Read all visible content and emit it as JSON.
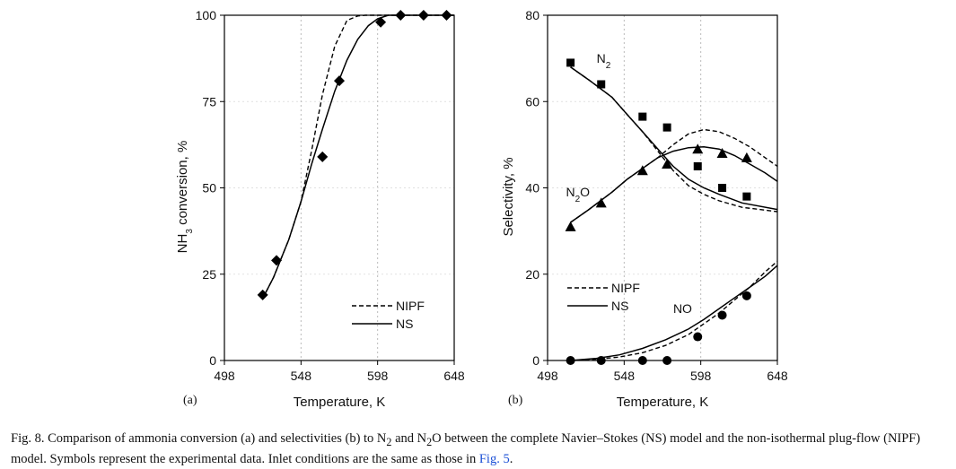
{
  "caption": {
    "part1": "Fig. 8. Comparison of ammonia conversion (a) and selectivities (b) to N",
    "sub1": "2",
    "part2": " and N",
    "sub2": "2",
    "part3": "O between the complete Navier–Stokes (NS) model and the non-isothermal plug-flow (NIPF) model. Symbols represent the experimental data. Inlet conditions are the same as those in ",
    "fig_ref": "Fig. 5",
    "part4": "."
  },
  "chart_data": [
    {
      "panel": "(a)",
      "type": "line",
      "xlabel": "Temperature, K",
      "ylabel": "NH3 conversion, %",
      "ylabel_parts": [
        "NH",
        "3",
        " conversion, %"
      ],
      "xlim": [
        498,
        648
      ],
      "ylim": [
        0,
        100
      ],
      "x_ticks": [
        498,
        548,
        598,
        648
      ],
      "y_ticks": [
        0,
        25,
        50,
        75,
        100
      ],
      "grid": "vertical dashed at x ticks",
      "legend": {
        "position": "bottom-right",
        "entries": [
          "NIPF",
          "NS"
        ]
      },
      "series": [
        {
          "name": "NIPF",
          "style": "dashed",
          "x": [
            523,
            530,
            540,
            548,
            555,
            562,
            570,
            578,
            585,
            590,
            598,
            610,
            648
          ],
          "y": [
            18,
            24,
            35,
            46,
            61,
            77,
            91,
            98.5,
            99.8,
            100,
            100,
            100,
            100
          ]
        },
        {
          "name": "NS",
          "style": "solid",
          "x": [
            523,
            530,
            540,
            548,
            555,
            562,
            570,
            578,
            585,
            592,
            598,
            605,
            615,
            648
          ],
          "y": [
            18,
            24,
            35,
            46,
            57,
            67,
            78,
            87,
            93,
            97,
            99,
            100,
            100,
            100
          ]
        },
        {
          "name": "experimental",
          "style": "diamond-markers",
          "x": [
            523,
            532,
            562,
            573,
            600,
            613,
            628,
            643
          ],
          "y": [
            19,
            29,
            59,
            81,
            98,
            100,
            100,
            100
          ]
        }
      ]
    },
    {
      "panel": "(b)",
      "type": "line",
      "xlabel": "Temperature, K",
      "ylabel": "Selectivity, %",
      "xlim": [
        498,
        648
      ],
      "ylim": [
        0,
        80
      ],
      "x_ticks": [
        498,
        548,
        598,
        648
      ],
      "y_ticks": [
        0,
        20,
        40,
        60,
        80
      ],
      "grid": "vertical dashed at x ticks",
      "legend": {
        "position": "bottom-left",
        "entries": [
          "NIPF",
          "NS"
        ]
      },
      "annotations": [
        {
          "base": "N",
          "sub": "2",
          "after": "",
          "x": 530,
          "y": 69
        },
        {
          "base": "N",
          "sub": "2",
          "after": "O",
          "x": 510,
          "y": 38
        },
        {
          "base": "NO",
          "sub": "",
          "after": "",
          "x": 580,
          "y": 11
        }
      ],
      "series": [
        {
          "name": "N2 NIPF",
          "style": "dashed",
          "x": [
            513,
            525,
            540,
            550,
            560,
            570,
            580,
            590,
            600,
            610,
            625,
            648
          ],
          "y": [
            68,
            65,
            61,
            57,
            53,
            48.5,
            44,
            40.5,
            38.5,
            37,
            35.5,
            34.5
          ]
        },
        {
          "name": "N2 NS",
          "style": "solid",
          "x": [
            513,
            525,
            540,
            550,
            560,
            570,
            580,
            590,
            600,
            610,
            625,
            648
          ],
          "y": [
            68,
            65,
            61,
            57,
            53,
            49,
            45,
            42,
            40,
            38.5,
            36.5,
            35
          ]
        },
        {
          "name": "N2O NIPF",
          "style": "dashed",
          "x": [
            513,
            525,
            540,
            550,
            560,
            570,
            580,
            590,
            600,
            610,
            620,
            630,
            640,
            648
          ],
          "y": [
            32,
            35,
            39,
            42,
            44.5,
            47,
            50,
            52.5,
            53.5,
            53,
            51.5,
            49.5,
            47,
            45
          ]
        },
        {
          "name": "N2O NS",
          "style": "solid",
          "x": [
            513,
            525,
            540,
            550,
            560,
            570,
            580,
            590,
            600,
            610,
            620,
            630,
            640,
            648
          ],
          "y": [
            32,
            35,
            39,
            42,
            44.5,
            47,
            48.5,
            49.3,
            49.5,
            49,
            47.5,
            45.5,
            43.5,
            41.5
          ]
        },
        {
          "name": "NO NIPF",
          "style": "dashed",
          "x": [
            513,
            530,
            545,
            560,
            575,
            590,
            600,
            610,
            620,
            630,
            640,
            648
          ],
          "y": [
            0,
            0.3,
            0.8,
            1.8,
            3.5,
            6,
            8.5,
            11,
            14,
            17,
            20.5,
            23
          ]
        },
        {
          "name": "NO NS",
          "style": "solid",
          "x": [
            513,
            530,
            545,
            560,
            575,
            590,
            600,
            610,
            620,
            630,
            640,
            648
          ],
          "y": [
            0,
            0.5,
            1.3,
            2.8,
            4.8,
            7.3,
            9.5,
            12,
            14.5,
            17,
            19.5,
            22
          ]
        },
        {
          "name": "N2 experimental",
          "style": "square-markers",
          "x": [
            513,
            533,
            560,
            576,
            596,
            612,
            628
          ],
          "y": [
            69,
            64,
            56.5,
            54,
            45,
            40,
            38
          ]
        },
        {
          "name": "N2O experimental",
          "style": "triangle-markers",
          "x": [
            513,
            533,
            560,
            576,
            596,
            612,
            628
          ],
          "y": [
            31,
            36.5,
            44,
            45.5,
            49,
            48,
            47
          ]
        },
        {
          "name": "NO experimental",
          "style": "circle-markers",
          "x": [
            513,
            533,
            560,
            576,
            596,
            612,
            628
          ],
          "y": [
            0,
            0,
            0,
            0,
            5.5,
            10.5,
            15
          ]
        }
      ]
    }
  ]
}
